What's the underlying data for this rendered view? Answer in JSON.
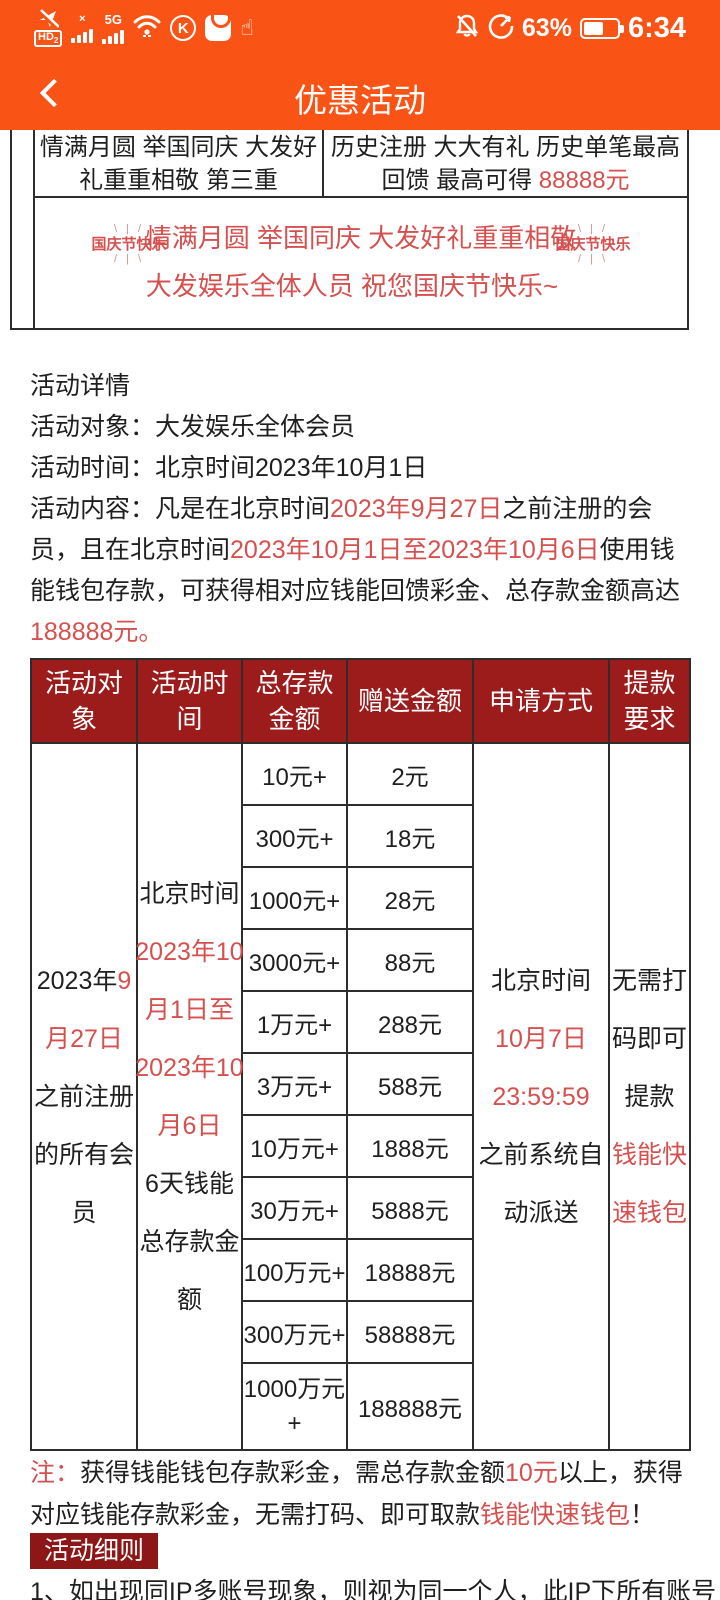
{
  "status_bar": {
    "time": "6:34",
    "battery_percent": "63%",
    "network_label": "5G",
    "sim1_label": "×",
    "hd_label": "HD",
    "hd_sub": "2",
    "k_label": "K",
    "hand_glyph": "☝"
  },
  "nav": {
    "title": "优惠活动"
  },
  "promo_strip": {
    "left_lines": [
      [
        {
          "t": "情满月圆 举国同庆 大发好"
        }
      ],
      [
        {
          "t": "礼重重相敬 第三重"
        }
      ]
    ],
    "right_lines": [
      [
        {
          "t": "历史注册 大大有礼 历史单笔最高"
        }
      ],
      [
        {
          "t": "回馈 最高可得 "
        },
        {
          "t": "88888元",
          "red": true
        }
      ]
    ]
  },
  "greeting": {
    "badge_text": "国庆节快乐",
    "rays_top": "\\ | /",
    "rays_bottom": "/ | \\",
    "lines": [
      [
        {
          "t": "情满月圆 举国同庆 大发好礼重重相敬",
          "red": true
        }
      ],
      [
        {
          "t": "大发娱乐全体人员 祝您国庆节快乐~",
          "red": true
        }
      ]
    ]
  },
  "details": {
    "title": "活动详情",
    "audience": "活动对象：大发娱乐全体会员",
    "time": "活动时间：北京时间2023年10月1日",
    "content_segments": [
      {
        "t": "活动内容：凡是在北京时间"
      },
      {
        "t": "2023年9月27日",
        "red": true
      },
      {
        "t": "之前注册的会员，且在北京时间"
      },
      {
        "t": "2023年10月1日至2023年10月6日",
        "red": true
      },
      {
        "t": "使用钱能钱包存款，可获得相对应钱能回馈彩金、总存款金额高达"
      },
      {
        "t": "188888元。",
        "red": true
      }
    ]
  },
  "table": {
    "headers": [
      "活动对象",
      "活动时间",
      "总存款金额",
      "赠送金额",
      "申请方式",
      "提款要求"
    ],
    "audience_lines": [
      [
        {
          "t": "2023年"
        },
        {
          "t": "9",
          "red": true
        }
      ],
      [
        {
          "t": "月27日",
          "red": true
        }
      ],
      [
        {
          "t": "之前注册"
        }
      ],
      [
        {
          "t": "的所有会"
        }
      ],
      [
        {
          "t": "员"
        }
      ]
    ],
    "time_lines": [
      [
        {
          "t": "北京时间"
        }
      ],
      [
        {
          "t": "2023年10",
          "red": true
        }
      ],
      [
        {
          "t": "月1日至",
          "red": true
        }
      ],
      [
        {
          "t": "2023年10",
          "red": true
        }
      ],
      [
        {
          "t": "月6日",
          "red": true
        }
      ],
      [
        {
          "t": "6天钱能"
        }
      ],
      [
        {
          "t": "总存款金"
        }
      ],
      [
        {
          "t": "额"
        }
      ]
    ],
    "tiers": [
      {
        "deposit": "10元+",
        "bonus": "2元"
      },
      {
        "deposit": "300元+",
        "bonus": "18元"
      },
      {
        "deposit": "1000元+",
        "bonus": "28元"
      },
      {
        "deposit": "3000元+",
        "bonus": "88元"
      },
      {
        "deposit": "1万元+",
        "bonus": "288元"
      },
      {
        "deposit": "3万元+",
        "bonus": "588元"
      },
      {
        "deposit": "10万元+",
        "bonus": "1888元"
      },
      {
        "deposit": "30万元+",
        "bonus": "5888元"
      },
      {
        "deposit": "100万元+",
        "bonus": "18888元"
      },
      {
        "deposit": "300万元+",
        "bonus": "58888元"
      },
      {
        "deposit": "1000万元+",
        "bonus": "188888元"
      }
    ],
    "apply_lines": [
      [
        {
          "t": "北京时间"
        }
      ],
      [
        {
          "t": "10月7日",
          "red": true
        }
      ],
      [
        {
          "t": "23:59:59",
          "red": true
        }
      ],
      [
        {
          "t": "之前系统自"
        }
      ],
      [
        {
          "t": "动派送"
        }
      ]
    ],
    "withdraw_lines": [
      [
        {
          "t": "无需打"
        }
      ],
      [
        {
          "t": "码即可"
        }
      ],
      [
        {
          "t": "提款"
        }
      ],
      [
        {
          "t": "钱能快",
          "red": true
        }
      ],
      [
        {
          "t": "速钱包",
          "red": true
        }
      ]
    ]
  },
  "note_segments": [
    {
      "t": "注：",
      "red": true
    },
    {
      "t": "获得钱能钱包存款彩金，需总存款金额"
    },
    {
      "t": "10元",
      "red": true
    },
    {
      "t": "以上，获得对应钱能存款彩金，无需打码、即可取款"
    },
    {
      "t": "钱能快速钱包",
      "red": true
    },
    {
      "t": "！"
    }
  ],
  "rules": {
    "badge": "活动细则",
    "rule_1": "1、如出现同IP多账号现象，则视为同一个人，此IP下所有账号"
  },
  "colors": {
    "accent_orange": "#f95315",
    "table_header_red": "#9c1b1b",
    "badge_red": "#8d1717",
    "red_text": "#d5504e"
  }
}
